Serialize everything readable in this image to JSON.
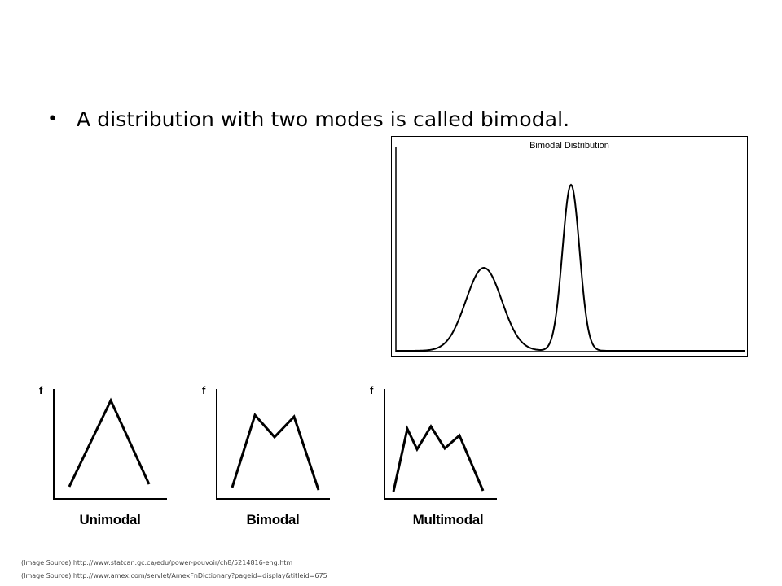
{
  "slide": {
    "bullet_symbol": "•",
    "bullet_text": "A distribution with two modes is called bimodal."
  },
  "bimodal_chart": {
    "title": "Bimodal Distribution"
  },
  "small_charts": [
    {
      "y_axis_label": "f",
      "caption": "Unimodal"
    },
    {
      "y_axis_label": "f",
      "caption": "Bimodal"
    },
    {
      "y_axis_label": "f",
      "caption": "Multimodal"
    }
  ],
  "sources": [
    "(Image Source) http://www.statcan.gc.ca/edu/power-pouvoir/ch8/5214816-eng.htm",
    "(Image Source) http://www.amex.com/servlet/AmexFnDictionary?pageid=display&titleid=675"
  ]
}
